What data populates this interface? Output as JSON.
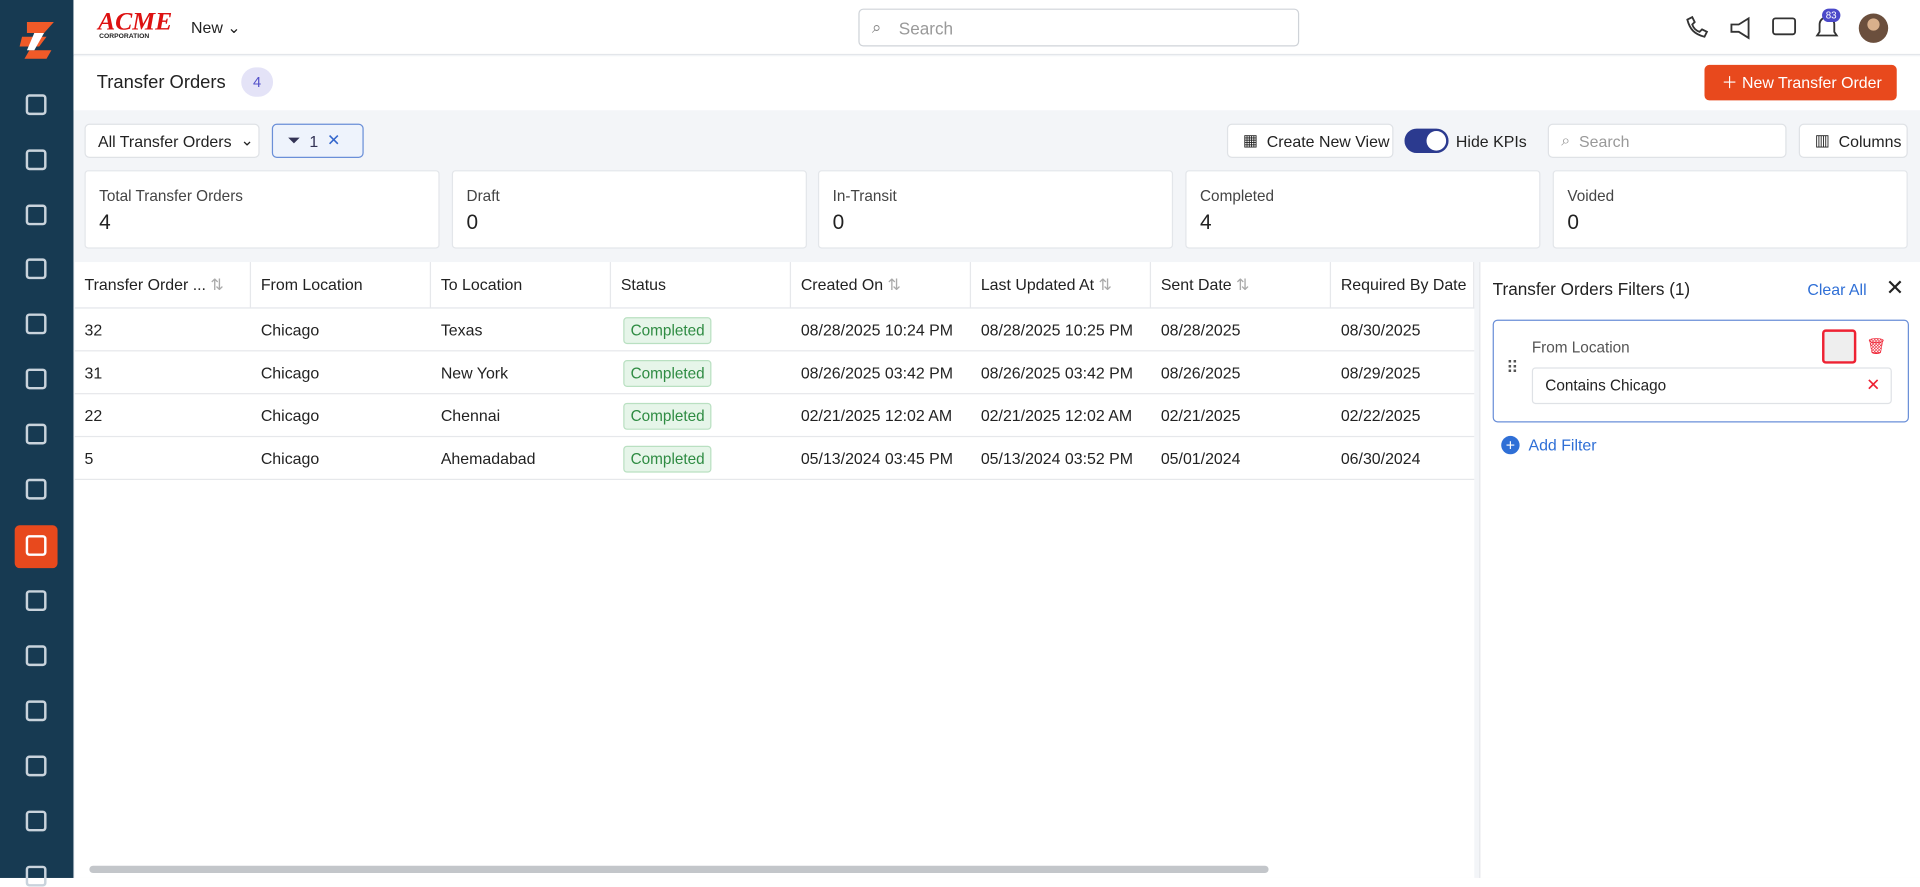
{
  "header": {
    "logo": "ACME",
    "logo_sub": "CORPORATION",
    "new_menu": "New",
    "search_placeholder": "Search",
    "notification_count": 83
  },
  "page": {
    "title": "Transfer Orders",
    "count": 4,
    "new_button": "New Transfer Order"
  },
  "toolbar": {
    "view": "All Transfer Orders",
    "filter_count": 1,
    "create_view": "Create New View",
    "hide_kpis": "Hide KPIs",
    "search_placeholder": "Search",
    "columns": "Columns"
  },
  "kpis": [
    {
      "label": "Total Transfer Orders",
      "value": 4
    },
    {
      "label": "Draft",
      "value": 0
    },
    {
      "label": "In-Transit",
      "value": 0
    },
    {
      "label": "Completed",
      "value": 4
    },
    {
      "label": "Voided",
      "value": 0
    }
  ],
  "table": {
    "columns": [
      "Transfer Order ...",
      "From Location",
      "To Location",
      "Status",
      "Created On",
      "Last Updated At",
      "Sent Date",
      "Required By Date"
    ],
    "rows": [
      [
        32,
        "Chicago",
        "Texas",
        "Completed",
        "08/28/2025 10:24 PM",
        "08/28/2025 10:25 PM",
        "08/28/2025",
        "08/30/2025"
      ],
      [
        31,
        "Chicago",
        "New York",
        "Completed",
        "08/26/2025 03:42 PM",
        "08/26/2025 03:42 PM",
        "08/26/2025",
        "08/29/2025"
      ],
      [
        22,
        "Chicago",
        "Chennai",
        "Completed",
        "02/21/2025 12:02 AM",
        "02/21/2025 12:02 AM",
        "02/21/2025",
        "02/22/2025"
      ],
      [
        5,
        "Chicago",
        "Ahemadabad",
        "Completed",
        "05/13/2024 03:45 PM",
        "05/13/2024 03:52 PM",
        "05/01/2024",
        "06/30/2024"
      ]
    ]
  },
  "filters": {
    "title": "Transfer Orders Filters (1)",
    "clear_all": "Clear All",
    "items": [
      {
        "field": "From Location",
        "condition": "Contains Chicago"
      }
    ],
    "add_filter": "Add Filter"
  }
}
